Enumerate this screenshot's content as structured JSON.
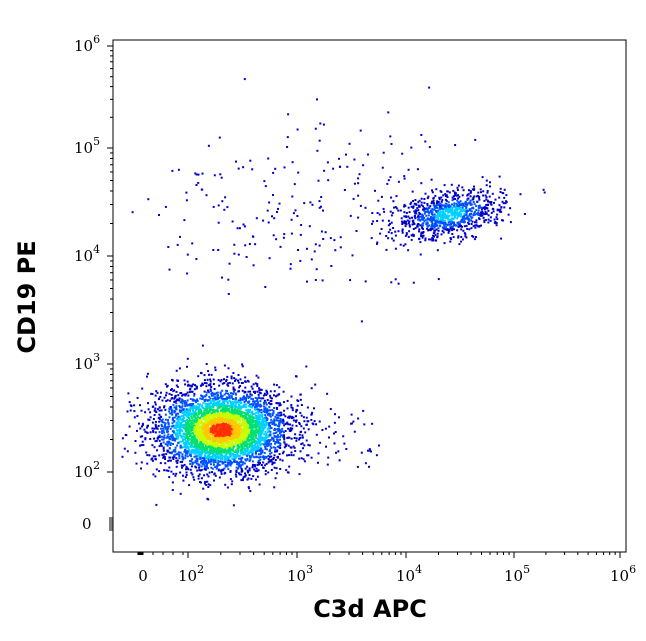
{
  "chart_data": {
    "type": "scatter",
    "subtype": "flow-cytometry density dot plot",
    "xlabel": "C3d APC",
    "ylabel": "CD19 PE",
    "x_scale": "biexponential",
    "y_scale": "biexponential",
    "x_ticks": [
      {
        "label": "0",
        "value": 0
      },
      {
        "label": "10",
        "exp": "2",
        "value": 100
      },
      {
        "label": "10",
        "exp": "3",
        "value": 1000
      },
      {
        "label": "10",
        "exp": "4",
        "value": 10000
      },
      {
        "label": "10",
        "exp": "5",
        "value": 100000
      },
      {
        "label": "10",
        "exp": "6",
        "value": 1000000
      }
    ],
    "y_ticks": [
      {
        "label": "0",
        "value": 0
      },
      {
        "label": "10",
        "exp": "2",
        "value": 100
      },
      {
        "label": "10",
        "exp": "3",
        "value": 1000
      },
      {
        "label": "10",
        "exp": "4",
        "value": 10000
      },
      {
        "label": "10",
        "exp": "5",
        "value": 100000
      },
      {
        "label": "10",
        "exp": "6",
        "value": 1000000
      }
    ],
    "color_scale": [
      "#0000c8",
      "#0050ff",
      "#00d0ff",
      "#00e070",
      "#c8ff00",
      "#ffc800",
      "#ff3000"
    ],
    "populations": [
      {
        "x_center": 200,
        "y_center": 250,
        "density": "high"
      },
      {
        "x_center": 25000,
        "y_center": 25000,
        "density": "medium"
      },
      {
        "x_center": 800,
        "y_center": 12000,
        "density": "sparse"
      }
    ],
    "grid": false,
    "legend": "none"
  }
}
